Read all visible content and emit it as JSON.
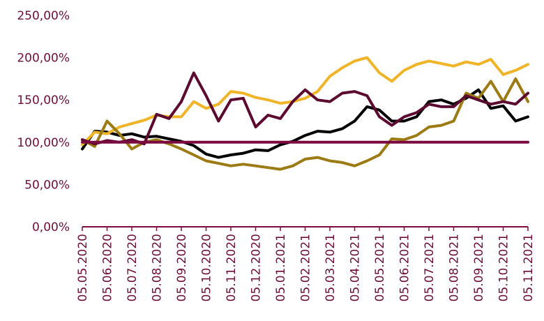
{
  "chart_data": {
    "type": "line",
    "title": "",
    "xlabel": "",
    "ylabel": "",
    "grid": false,
    "legend": "none",
    "ylim": [
      0,
      250
    ],
    "y_ticks": [
      0,
      50,
      100,
      150,
      200,
      250
    ],
    "y_tick_labels": [
      "0,00%",
      "50,00%",
      "100,00%",
      "150,00%",
      "200,00%",
      "250,00%"
    ],
    "x_ticks": [
      "05.05.2020",
      "05.06.2020",
      "05.07.2020",
      "05.08.2020",
      "05.09.2020",
      "05.10.2020",
      "05.11.2020",
      "05.12.2020",
      "05.01.2021",
      "05.02.2021",
      "05.03.2021",
      "05.04.2021",
      "05.05.2021",
      "05.06.2021",
      "05.07.2021",
      "05.08.2021",
      "05.09.2021",
      "05.10.2021",
      "05.11.2021"
    ],
    "x": [
      "05.05.2020",
      "20.05.2020",
      "05.06.2020",
      "20.06.2020",
      "05.07.2020",
      "20.07.2020",
      "05.08.2020",
      "20.08.2020",
      "05.09.2020",
      "20.09.2020",
      "05.10.2020",
      "20.10.2020",
      "05.11.2020",
      "20.11.2020",
      "05.12.2020",
      "20.12.2020",
      "05.01.2021",
      "20.01.2021",
      "05.02.2021",
      "20.02.2021",
      "05.03.2021",
      "20.03.2021",
      "05.04.2021",
      "20.04.2021",
      "05.05.2021",
      "20.05.2021",
      "05.06.2021",
      "20.06.2021",
      "05.07.2021",
      "20.07.2021",
      "05.08.2021",
      "20.08.2021",
      "05.09.2021",
      "20.09.2021",
      "05.10.2021",
      "20.10.2021",
      "05.11.2021"
    ],
    "series": [
      {
        "color": "#000000",
        "values": [
          92,
          113,
          112,
          108,
          110,
          106,
          107,
          104,
          101,
          96,
          86,
          82,
          85,
          87,
          91,
          90,
          97,
          101,
          108,
          113,
          112,
          116,
          125,
          142,
          138,
          125,
          125,
          130,
          148,
          150,
          145,
          152,
          162,
          140,
          143,
          125,
          130
        ]
      },
      {
        "color": "#f0b429",
        "values": [
          97,
          112,
          110,
          118,
          122,
          126,
          132,
          130,
          130,
          148,
          140,
          145,
          160,
          158,
          153,
          150,
          146,
          148,
          152,
          160,
          178,
          188,
          196,
          200,
          182,
          172,
          185,
          192,
          196,
          193,
          190,
          195,
          192,
          198,
          180,
          185,
          192
        ]
      },
      {
        "color": "#9c7a14",
        "values": [
          103,
          95,
          125,
          110,
          92,
          100,
          103,
          98,
          92,
          85,
          78,
          75,
          72,
          74,
          72,
          70,
          68,
          72,
          80,
          82,
          78,
          76,
          72,
          78,
          85,
          104,
          103,
          108,
          118,
          120,
          125,
          158,
          152,
          172,
          148,
          175,
          148
        ]
      },
      {
        "color": "#5c0a30",
        "values": [
          103,
          98,
          102,
          100,
          103,
          98,
          133,
          128,
          148,
          182,
          155,
          125,
          150,
          152,
          118,
          132,
          128,
          148,
          162,
          150,
          148,
          158,
          160,
          155,
          130,
          120,
          130,
          135,
          145,
          142,
          142,
          155,
          150,
          145,
          148,
          145,
          158
        ]
      },
      {
        "color": "#7a0a3f",
        "values": [
          100,
          100,
          100,
          100,
          100,
          100,
          100,
          100,
          100,
          100,
          100,
          100,
          100,
          100,
          100,
          100,
          100,
          100,
          100,
          100,
          100,
          100,
          100,
          100,
          100,
          100,
          100,
          100,
          100,
          100,
          100,
          100,
          100,
          100,
          100,
          100,
          100
        ]
      }
    ]
  }
}
